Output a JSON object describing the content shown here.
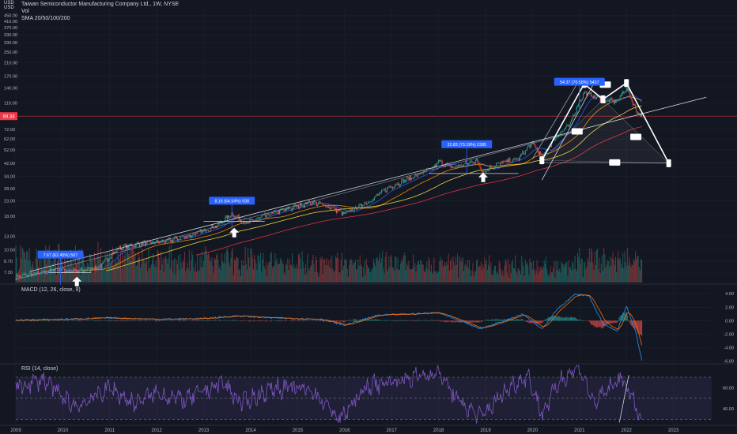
{
  "header": {
    "currency_top": "USD",
    "currency_sub": "USD",
    "title": "Taiwan Semiconductor Manufacturing Company Ltd., 1W, NYSE",
    "vol": "Vol",
    "sma": "SMA 20/50/100/200",
    "macd_label": "MACD (12, 26, close, 9)",
    "rsi_label": "RSI (14, close)"
  },
  "colors": {
    "background": "#131722",
    "up": "#26a69a",
    "down": "#ef5350",
    "macd": "#2196f3",
    "signal": "#ff6d00",
    "rsi": "#7e57c2",
    "callout": "#2962ff",
    "price_label": "#f23645"
  },
  "price_badge": "89.34",
  "chart_data": [
    {
      "type": "candlestick",
      "title": "Taiwan Semiconductor Manufacturing Company Ltd., 1W, NYSE",
      "ylabel": "USD",
      "yscale": "log",
      "y_ticks": [
        "450.00",
        "410.00",
        "370.00",
        "330.00",
        "290.00",
        "250.00",
        "210.00",
        "170.00",
        "140.00",
        "110.00",
        "89.34",
        "72.00",
        "62.00",
        "52.00",
        "42.00",
        "34.00",
        "28.00",
        "23.00",
        "18.00",
        "13.00",
        "10.50",
        "8.70",
        "7.30"
      ],
      "x_ticks": [
        "2009",
        "2010",
        "2011",
        "2012",
        "2013",
        "2014",
        "2015",
        "2016",
        "2017",
        "2018",
        "2019",
        "2020",
        "2021",
        "2022",
        "2023"
      ],
      "price_anchors": [
        [
          2009.0,
          6.8
        ],
        [
          2009.5,
          7.2
        ],
        [
          2009.9,
          7.7
        ],
        [
          2010.3,
          7.4
        ],
        [
          2010.8,
          8.0
        ],
        [
          2011.2,
          10.8
        ],
        [
          2011.7,
          11.6
        ],
        [
          2012.2,
          12.0
        ],
        [
          2012.8,
          13.4
        ],
        [
          2013.3,
          15.5
        ],
        [
          2013.6,
          18.6
        ],
        [
          2013.9,
          16.0
        ],
        [
          2014.4,
          18.5
        ],
        [
          2014.9,
          20.6
        ],
        [
          2015.3,
          22.5
        ],
        [
          2015.7,
          20.8
        ],
        [
          2016.0,
          18.5
        ],
        [
          2016.6,
          23.5
        ],
        [
          2016.9,
          28.0
        ],
        [
          2017.4,
          33.0
        ],
        [
          2017.9,
          39.0
        ],
        [
          2018.0,
          43.0
        ],
        [
          2018.3,
          39.0
        ],
        [
          2018.6,
          41.5
        ],
        [
          2018.8,
          44.0
        ],
        [
          2018.95,
          36.5
        ],
        [
          2019.3,
          42.0
        ],
        [
          2019.7,
          45.0
        ],
        [
          2020.0,
          58.0
        ],
        [
          2020.2,
          46.0
        ],
        [
          2020.5,
          64.0
        ],
        [
          2020.8,
          78.0
        ],
        [
          2021.1,
          130.0
        ],
        [
          2021.5,
          115.0
        ],
        [
          2021.8,
          113.0
        ],
        [
          2022.0,
          140.0
        ],
        [
          2022.2,
          98.0
        ],
        [
          2022.33,
          89.34
        ]
      ],
      "sma": {
        "periods": [
          20,
          50,
          100,
          200
        ],
        "colors": [
          "#2962ff",
          "#ff9800",
          "#ffeb3b",
          "#f23645"
        ]
      },
      "volume": {
        "label": "Vol"
      },
      "annotations": [
        {
          "text": "7.67 (62.45%) 567",
          "x": 2009.95,
          "y": 9.7
        },
        {
          "text": "8.16 (64.54%) 938",
          "x": 2013.6,
          "y": 23.0
        },
        {
          "text": "22.83 (73.19%) 2385",
          "x": 2018.6,
          "y": 57.0
        },
        {
          "text": "54.37 (70.58%) 5437",
          "x": 2021.0,
          "y": 155.0
        }
      ],
      "pattern": {
        "type": "harmonic",
        "points": [
          [
            2020.2,
            44.0
          ],
          [
            2021.1,
            150.0
          ],
          [
            2021.5,
            117.0
          ],
          [
            2022.0,
            152.0
          ],
          [
            2022.9,
            42.0
          ]
        ]
      }
    },
    {
      "type": "line",
      "title": "MACD (12, 26, close, 9)",
      "series": [
        {
          "name": "MACD"
        },
        {
          "name": "Signal"
        },
        {
          "name": "Histogram"
        }
      ],
      "y_ticks": [
        "4.00",
        "2.00",
        "0.00",
        "-2.00",
        "-4.00",
        "-6.00"
      ],
      "ylim": [
        -6.3,
        5.2
      ],
      "anchors": [
        [
          2009.0,
          0.05
        ],
        [
          2010.0,
          0.2
        ],
        [
          2011.0,
          0.4
        ],
        [
          2012.0,
          0.2
        ],
        [
          2013.0,
          0.3
        ],
        [
          2013.7,
          0.7
        ],
        [
          2014.5,
          0.4
        ],
        [
          2015.5,
          0.2
        ],
        [
          2016.0,
          -0.7
        ],
        [
          2016.7,
          0.8
        ],
        [
          2017.5,
          1.0
        ],
        [
          2018.0,
          1.2
        ],
        [
          2018.9,
          -1.2
        ],
        [
          2019.8,
          1.0
        ],
        [
          2020.2,
          -1.3
        ],
        [
          2020.5,
          1.5
        ],
        [
          2020.9,
          3.9
        ],
        [
          2021.2,
          3.7
        ],
        [
          2021.5,
          -0.5
        ],
        [
          2021.8,
          -1.6
        ],
        [
          2022.0,
          2.2
        ],
        [
          2022.2,
          -1.8
        ],
        [
          2022.33,
          -6.0
        ]
      ]
    },
    {
      "type": "line",
      "title": "RSI (14, close)",
      "series": [
        {
          "name": "RSI"
        }
      ],
      "y_ticks": [
        "60.00",
        "40.00"
      ],
      "bands": [
        30,
        70
      ],
      "ylim": [
        25,
        82
      ],
      "anchors": [
        [
          2009.0,
          60
        ],
        [
          2009.6,
          68
        ],
        [
          2010.0,
          50
        ],
        [
          2010.3,
          42
        ],
        [
          2011.0,
          60
        ],
        [
          2011.5,
          45
        ],
        [
          2012.0,
          55
        ],
        [
          2012.6,
          48
        ],
        [
          2013.4,
          65
        ],
        [
          2013.8,
          45
        ],
        [
          2014.5,
          60
        ],
        [
          2015.3,
          58
        ],
        [
          2015.9,
          30
        ],
        [
          2016.5,
          62
        ],
        [
          2017.5,
          70
        ],
        [
          2018.0,
          75
        ],
        [
          2018.4,
          48
        ],
        [
          2018.9,
          32
        ],
        [
          2019.5,
          60
        ],
        [
          2019.9,
          72
        ],
        [
          2020.2,
          35
        ],
        [
          2020.6,
          68
        ],
        [
          2021.0,
          80
        ],
        [
          2021.3,
          45
        ],
        [
          2021.9,
          70
        ],
        [
          2022.0,
          62
        ],
        [
          2022.3,
          30
        ]
      ]
    }
  ]
}
